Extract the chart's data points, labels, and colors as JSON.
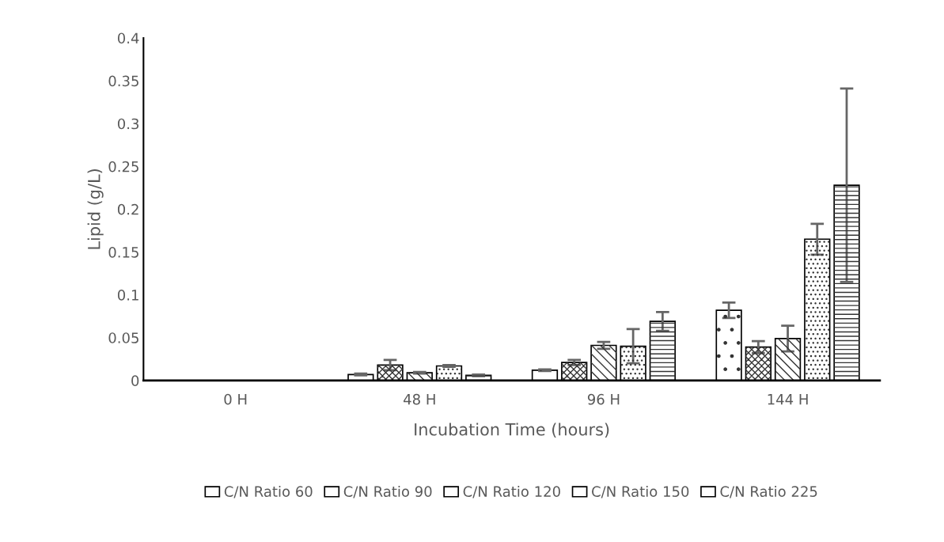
{
  "chart_data": {
    "type": "bar",
    "xlabel": "Incubation Time (hours)",
    "ylabel": "Lipid (g/L)",
    "categories": [
      "0 H",
      "48 H",
      "96 H",
      "144 H"
    ],
    "ylim": [
      0,
      0.4
    ],
    "yticks": [
      0,
      0.05,
      0.1,
      0.15,
      0.2,
      0.25,
      0.3,
      0.35,
      0.4
    ],
    "grid": false,
    "legend": "bottom",
    "series": [
      {
        "name": "C/N Ratio 60",
        "color": "#ffffff",
        "values": [
          null,
          0.007,
          0.012,
          0.082
        ],
        "errors": [
          null,
          0.001,
          0.001,
          0.009
        ]
      },
      {
        "name": "C/N Ratio 90",
        "color": "#ffffff",
        "values": [
          null,
          0.018,
          0.021,
          0.039
        ],
        "errors": [
          null,
          0.006,
          0.003,
          0.007
        ]
      },
      {
        "name": "C/N Ratio 120",
        "color": "#ffffff",
        "values": [
          null,
          0.009,
          0.041,
          0.049
        ],
        "errors": [
          null,
          0.001,
          0.004,
          0.015
        ]
      },
      {
        "name": "C/N Ratio 150",
        "color": "#ffffff",
        "values": [
          null,
          0.017,
          0.04,
          0.165
        ],
        "errors": [
          null,
          0.001,
          0.02,
          0.018
        ]
      },
      {
        "name": "C/N Ratio 225",
        "color": "#ffffff",
        "values": [
          null,
          0.006,
          0.069,
          0.228
        ],
        "errors": [
          null,
          0.001,
          0.011,
          0.113
        ]
      }
    ]
  }
}
